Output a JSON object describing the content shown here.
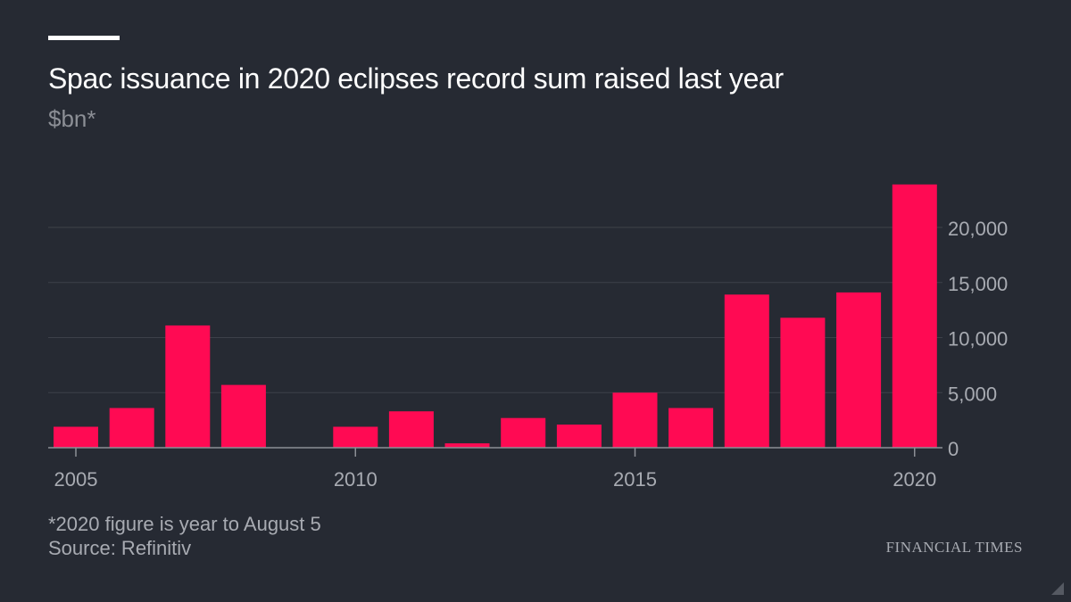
{
  "header": {
    "title": "Spac issuance in 2020 eclipses record sum raised last year",
    "subtitle": "$bn*"
  },
  "footer": {
    "note": "*2020 figure is year to August 5",
    "source": "Source: Refinitiv",
    "brand": "FINANCIAL TIMES"
  },
  "colors": {
    "bar": "#ff0a53",
    "background": "#262a33",
    "grid": "#3d414a",
    "axis_text": "#a8abb2"
  },
  "chart_data": {
    "type": "bar",
    "title": "Spac issuance in 2020 eclipses record sum raised last year",
    "ylabel": "$bn*",
    "xlabel": "",
    "categories": [
      2005,
      2006,
      2007,
      2008,
      2009,
      2010,
      2011,
      2012,
      2013,
      2014,
      2015,
      2016,
      2017,
      2018,
      2019,
      2020
    ],
    "values": [
      1900,
      3600,
      11100,
      5700,
      0,
      1900,
      3300,
      400,
      2700,
      2100,
      5000,
      3600,
      13900,
      11800,
      14100,
      23900
    ],
    "ylim": [
      0,
      24000
    ],
    "yticks": [
      0,
      5000,
      10000,
      15000,
      20000
    ],
    "ytick_labels": [
      "0",
      "5,000",
      "10,000",
      "15,000",
      "20,000"
    ],
    "xticks": [
      2005,
      2010,
      2015,
      2020
    ],
    "xtick_labels": [
      "2005",
      "2010",
      "2015",
      "2020"
    ],
    "y_axis_position": "right",
    "grid": true
  }
}
